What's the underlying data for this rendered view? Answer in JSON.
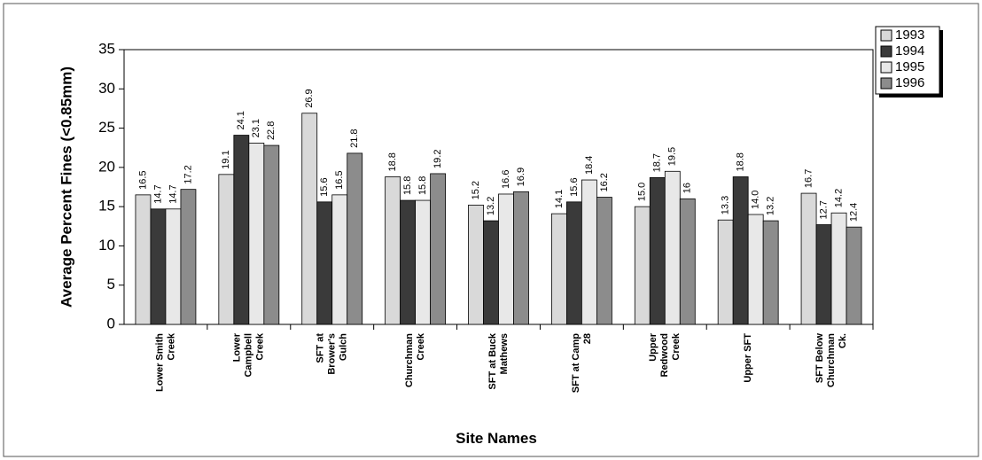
{
  "chart_data": {
    "type": "bar",
    "y_label": "Average Percent Fines (<0.85mm)",
    "x_label": "Site Names",
    "categories": [
      [
        "Lower Smith",
        "Creek"
      ],
      [
        "Lower",
        "Campbell",
        "Creek"
      ],
      [
        "SFT at",
        "Brower's",
        "Gulch"
      ],
      [
        "Churchman",
        "Creek"
      ],
      [
        "SFT at Buck",
        "Mathews"
      ],
      [
        "SFT at Camp",
        "28"
      ],
      [
        "Upper",
        "Redwood",
        "Creek"
      ],
      [
        "Upper SFT"
      ],
      [
        "SFT Below",
        "Churchman",
        "Ck."
      ]
    ],
    "series": [
      {
        "name": "1993",
        "color": "#d9d9d9",
        "values": [
          16.5,
          19.1,
          26.9,
          18.8,
          15.2,
          14.1,
          15.0,
          13.3,
          16.7
        ],
        "value_labels": [
          "16.5",
          "19.1",
          "26.9",
          "18.8",
          "15.2",
          "14.1",
          "15.0",
          "13.3",
          "16.7"
        ]
      },
      {
        "name": "1994",
        "color": "#3a3a3a",
        "values": [
          14.7,
          24.1,
          15.6,
          15.8,
          13.2,
          15.6,
          18.7,
          18.8,
          12.7
        ],
        "value_labels": [
          "14.7",
          "24.1",
          "15.6",
          "15.8",
          "13.2",
          "15.6",
          "18.7",
          "18.8",
          "12.7"
        ]
      },
      {
        "name": "1995",
        "color": "#e8e8e8",
        "values": [
          14.7,
          23.1,
          16.5,
          15.8,
          16.6,
          18.4,
          19.5,
          14.0,
          14.2
        ],
        "value_labels": [
          "14.7",
          "23.1",
          "16.5",
          "15.8",
          "16.6",
          "18.4",
          "19.5",
          "14.0",
          "14.2"
        ]
      },
      {
        "name": "1996",
        "color": "#8c8c8c",
        "values": [
          17.2,
          22.8,
          21.8,
          19.2,
          16.9,
          16.2,
          16,
          13.2,
          12.4
        ],
        "value_labels": [
          "17.2",
          "22.8",
          "21.8",
          "19.2",
          "16.9",
          "16.2",
          "16",
          "13.2",
          "12.4"
        ]
      }
    ],
    "ylim": [
      0,
      35
    ],
    "yticks": [
      0,
      5,
      10,
      15,
      20,
      25,
      30,
      35
    ],
    "legend": "top-right"
  }
}
